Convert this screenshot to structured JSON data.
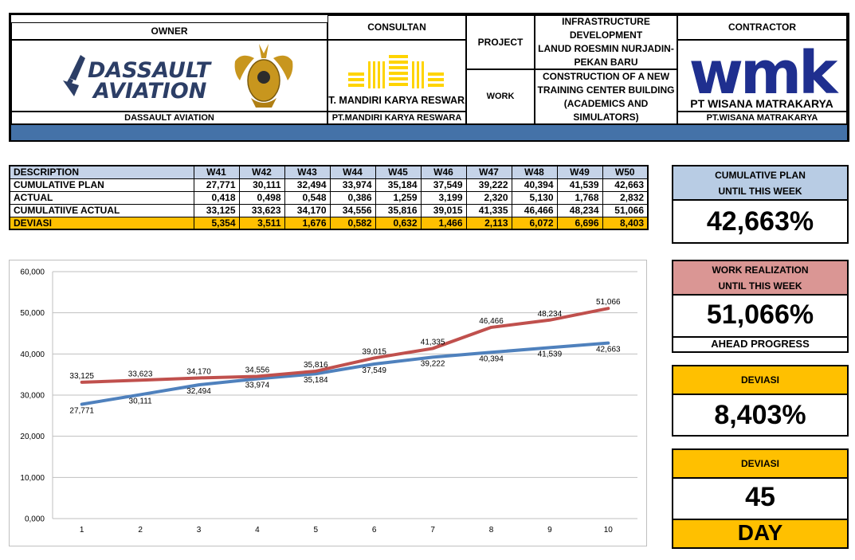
{
  "header": {
    "owner_label": "OWNER",
    "owner_logo_text": [
      "DASSAULT",
      "AVIATION"
    ],
    "owner_name": "DASSAULT AVIATION",
    "consultan_label": "CONSULTAN",
    "consultan_logo_text": "PT. MANDIRI KARYA RESWARA",
    "consultan_name": "PT.MANDIRI KARYA RESWARA",
    "project_label": "PROJECT",
    "project_value": [
      "INFRASTRUCTURE DEVELOPMENT",
      "LANUD ROESMIN NURJADIN-",
      "PEKAN BARU"
    ],
    "work_label": "WORK",
    "work_value": [
      "CONSTRUCTION OF A NEW",
      "TRAINING CENTER BUILDING",
      "(ACADEMICS AND SIMULATORS)"
    ],
    "contractor_label": "CONTRACTOR",
    "contractor_logo_text": "wmk",
    "contractor_logo_sub": "PT WISANA MATRAKARYA",
    "contractor_name": "PT.WISANA MATRAKARYA",
    "colors": {
      "band": "#4472a8",
      "wmk_blue": "#1f2f8f",
      "mkr_yellow": "#ffd400",
      "dassault_navy": "#2c3e66",
      "emblem_gold": "#c8961e"
    }
  },
  "table": {
    "header": [
      "DESCRIPTION",
      "W41",
      "W42",
      "W43",
      "W44",
      "W45",
      "W46",
      "W47",
      "W48",
      "W49",
      "W50"
    ],
    "rows": [
      {
        "label": "CUMULATIVE PLAN",
        "values": [
          "27,771",
          "30,111",
          "32,494",
          "33,974",
          "35,184",
          "37,549",
          "39,222",
          "40,394",
          "41,539",
          "42,663"
        ]
      },
      {
        "label": "ACTUAL",
        "values": [
          "0,418",
          "0,498",
          "0,548",
          "0,386",
          "1,259",
          "3,199",
          "2,320",
          "5,130",
          "1,768",
          "2,832"
        ]
      },
      {
        "label": "CUMULATIIVE ACTUAL",
        "values": [
          "33,125",
          "33,623",
          "34,170",
          "34,556",
          "35,816",
          "39,015",
          "41,335",
          "46,466",
          "48,234",
          "51,066"
        ]
      },
      {
        "label": "DEVIASI",
        "values": [
          "5,354",
          "3,511",
          "1,676",
          "0,582",
          "0,632",
          "1,466",
          "2,113",
          "6,072",
          "6,696",
          "8,403"
        ]
      }
    ],
    "colors": {
      "header_bg": "#c5d3e8",
      "deviasi_bg": "#ffc000"
    }
  },
  "chart_data": {
    "type": "line",
    "x": [
      1,
      2,
      3,
      4,
      5,
      6,
      7,
      8,
      9,
      10
    ],
    "ylim": [
      0,
      60
    ],
    "ytick_labels": [
      "0,000",
      "10,000",
      "20,000",
      "30,000",
      "40,000",
      "50,000",
      "60,000"
    ],
    "grid": true,
    "series": [
      {
        "values": [
          27.771,
          30.111,
          32.494,
          33.974,
          35.184,
          37.549,
          39.222,
          40.394,
          41.539,
          42.663
        ],
        "labels": [
          "27,771",
          "30,111",
          "32,494",
          "33,974",
          "35,184",
          "37,549",
          "39,222",
          "40,394",
          "41,539",
          "42,663"
        ],
        "color": "#4f81bd"
      },
      {
        "values": [
          33.125,
          33.623,
          34.17,
          34.556,
          35.816,
          39.015,
          41.335,
          46.466,
          48.234,
          51.066
        ],
        "labels": [
          "33,125",
          "33,623",
          "34,170",
          "34,556",
          "35,816",
          "39,015",
          "41,335",
          "46,466",
          "48,234",
          "51,066"
        ],
        "color": "#c0504d"
      }
    ]
  },
  "panels": {
    "cum_plan": {
      "title1": "CUMULATIVE PLAN",
      "title2": "UNTIL THIS WEEK",
      "value": "42,663%",
      "color": "#b8cce4"
    },
    "work_real": {
      "title1": "WORK REALIZATION",
      "title2": "UNTIL THIS WEEK",
      "value": "51,066%",
      "status": "AHEAD PROGRESS",
      "color": "#da9694"
    },
    "deviasi_pct": {
      "title": "DEVIASI",
      "value": "8,403%",
      "color": "#ffc000"
    },
    "deviasi_day": {
      "title": "DEVIASI",
      "value": "45",
      "unit": "DAY",
      "color": "#ffc000"
    }
  }
}
